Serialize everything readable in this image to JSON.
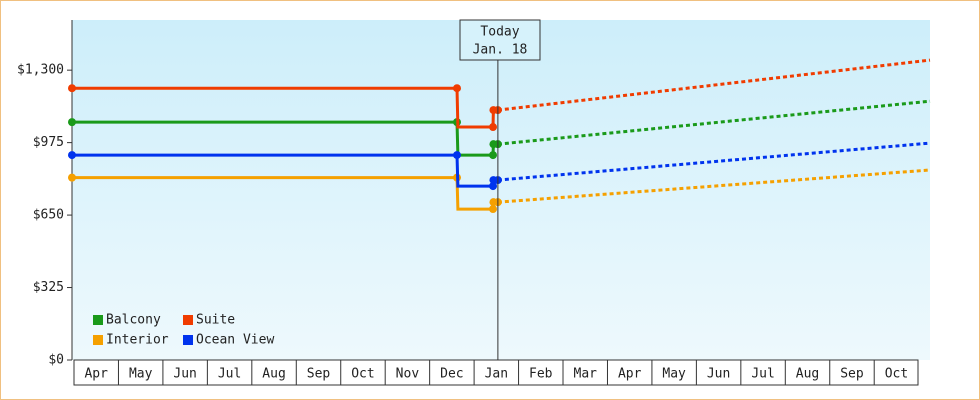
{
  "chart_data": {
    "type": "line",
    "categories": [
      "Apr",
      "May",
      "Jun",
      "Jul",
      "Aug",
      "Sep",
      "Oct",
      "Nov",
      "Dec",
      "Jan",
      "Feb",
      "Mar",
      "Apr",
      "May",
      "Jun",
      "Jul",
      "Aug",
      "Sep",
      "Oct"
    ],
    "xlim": [
      0,
      19.3
    ],
    "ylim": [
      0,
      1525
    ],
    "yticks": [
      {
        "value": 0,
        "label": "$0"
      },
      {
        "value": 325,
        "label": "$325"
      },
      {
        "value": 650,
        "label": "$650"
      },
      {
        "value": 975,
        "label": "$975"
      },
      {
        "value": 1300,
        "label": "$1,300"
      }
    ],
    "today": {
      "x": 9.58,
      "label": "Today",
      "date": "Jan. 18"
    },
    "series": [
      {
        "name": "Balcony",
        "color": "#1a9a1a",
        "x": [
          0,
          8.66,
          8.68,
          9.47,
          9.48,
          9.58
        ],
        "values": [
          1067,
          1067,
          919,
          919,
          968,
          968
        ],
        "forecast_x": [
          9.58,
          19.3
        ],
        "forecast_values": [
          968,
          1161
        ]
      },
      {
        "name": "Suite",
        "color": "#f03c00",
        "x": [
          0,
          8.66,
          8.68,
          9.47,
          9.48,
          9.58
        ],
        "values": [
          1219,
          1219,
          1045,
          1045,
          1121,
          1121
        ],
        "forecast_x": [
          9.58,
          19.3
        ],
        "forecast_values": [
          1121,
          1345
        ]
      },
      {
        "name": "Interior",
        "color": "#f5a000",
        "x": [
          0,
          8.66,
          8.68,
          9.47,
          9.48,
          9.58
        ],
        "values": [
          818,
          818,
          677,
          677,
          708,
          708
        ],
        "forecast_x": [
          9.58,
          19.3
        ],
        "forecast_values": [
          708,
          852
        ]
      },
      {
        "name": "Ocean View",
        "color": "#0033ee",
        "x": [
          0,
          8.66,
          8.68,
          9.47,
          9.48,
          9.58
        ],
        "values": [
          919,
          919,
          780,
          780,
          807,
          807
        ],
        "forecast_x": [
          9.58,
          19.3
        ],
        "forecast_values": [
          807,
          973
        ]
      }
    ]
  }
}
